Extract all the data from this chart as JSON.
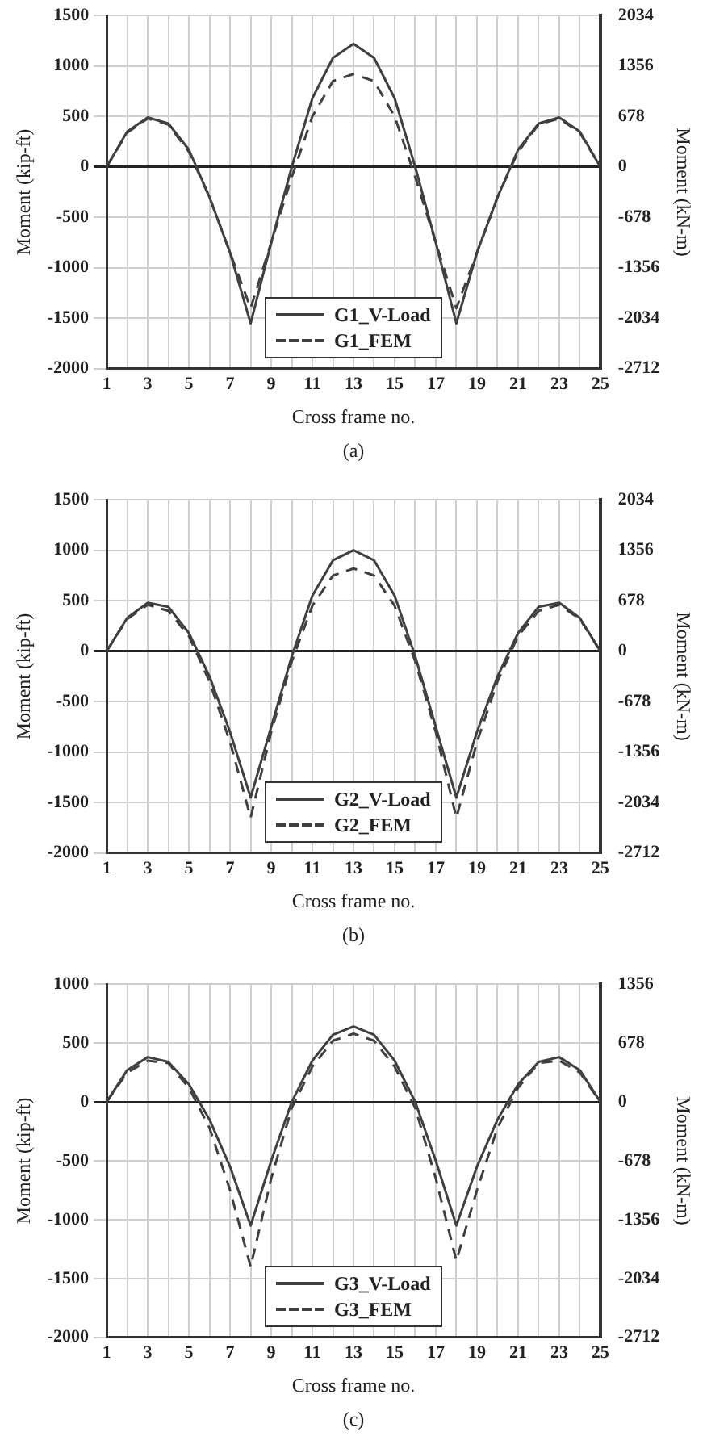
{
  "chart_data": [
    {
      "type": "line",
      "xlabel": "Cross frame no.",
      "ylabel": "Moment (kip-ft)",
      "y2label": "Moment (kN-m)",
      "annotations": [
        "(a)"
      ],
      "x": [
        1,
        2,
        3,
        4,
        5,
        6,
        7,
        8,
        9,
        10,
        11,
        12,
        13,
        14,
        15,
        16,
        17,
        18,
        19,
        20,
        21,
        22,
        23,
        24,
        25
      ],
      "xlim": [
        1,
        25
      ],
      "xticks": [
        1,
        {
          "value": 2,
          "label": null
        },
        3,
        {
          "value": 4,
          "label": null
        },
        5,
        {
          "value": 6,
          "label": null
        },
        7,
        {
          "value": 8,
          "label": null
        },
        9,
        {
          "value": 10,
          "label": null
        },
        11,
        {
          "value": 12,
          "label": null
        },
        13,
        {
          "value": 14,
          "label": null
        },
        15,
        {
          "value": 16,
          "label": null
        },
        17,
        {
          "value": 18,
          "label": null
        },
        19,
        {
          "value": 20,
          "label": null
        },
        21,
        {
          "value": 22,
          "label": null
        },
        23,
        {
          "value": 24,
          "label": null
        },
        25
      ],
      "ylim": [
        -2000,
        1500
      ],
      "yticks": [
        -2000,
        -1500,
        -1000,
        -500,
        0,
        500,
        1000,
        1500
      ],
      "y2lim": [
        -2712,
        2034
      ],
      "y2ticks": [
        -2712,
        -2034,
        -1356,
        -678,
        0,
        678,
        1356,
        2034
      ],
      "grid": true,
      "legend": "bottom",
      "series": [
        {
          "name": "G1_V-Load",
          "color": "#404040",
          "line_style": "solid",
          "values": [
            0,
            350,
            490,
            430,
            170,
            -300,
            -850,
            -1550,
            -750,
            0,
            680,
            1080,
            1220,
            1080,
            680,
            0,
            -750,
            -1550,
            -850,
            -300,
            170,
            430,
            490,
            350,
            0
          ]
        },
        {
          "name": "G1_FEM",
          "color": "#404040",
          "line_style": "dashed",
          "values": [
            0,
            340,
            480,
            420,
            150,
            -300,
            -850,
            -1400,
            -750,
            -100,
            500,
            850,
            920,
            850,
            500,
            -100,
            -750,
            -1400,
            -850,
            -300,
            150,
            420,
            480,
            340,
            0
          ]
        }
      ]
    },
    {
      "type": "line",
      "xlabel": "Cross frame no.",
      "ylabel": "Moment (kip-ft)",
      "y2label": "Moment (kN-m)",
      "annotations": [
        "(b)"
      ],
      "x": [
        1,
        2,
        3,
        4,
        5,
        6,
        7,
        8,
        9,
        10,
        11,
        12,
        13,
        14,
        15,
        16,
        17,
        18,
        19,
        20,
        21,
        22,
        23,
        24,
        25
      ],
      "xlim": [
        1,
        25
      ],
      "xticks": [
        1,
        {
          "value": 2,
          "label": null
        },
        3,
        {
          "value": 4,
          "label": null
        },
        5,
        {
          "value": 6,
          "label": null
        },
        7,
        {
          "value": 8,
          "label": null
        },
        9,
        {
          "value": 10,
          "label": null
        },
        11,
        {
          "value": 12,
          "label": null
        },
        13,
        {
          "value": 14,
          "label": null
        },
        15,
        {
          "value": 16,
          "label": null
        },
        17,
        {
          "value": 18,
          "label": null
        },
        19,
        {
          "value": 20,
          "label": null
        },
        21,
        {
          "value": 22,
          "label": null
        },
        23,
        {
          "value": 24,
          "label": null
        },
        25
      ],
      "ylim": [
        -2000,
        1500
      ],
      "yticks": [
        -2000,
        -1500,
        -1000,
        -500,
        0,
        500,
        1000,
        1500
      ],
      "y2lim": [
        -2712,
        2034
      ],
      "y2ticks": [
        -2712,
        -2034,
        -1356,
        -678,
        0,
        678,
        1356,
        2034
      ],
      "grid": true,
      "legend": "bottom",
      "series": [
        {
          "name": "G2_V-Load",
          "color": "#404040",
          "line_style": "solid",
          "values": [
            0,
            330,
            480,
            440,
            180,
            -250,
            -800,
            -1450,
            -750,
            -50,
            550,
            900,
            1000,
            900,
            550,
            -50,
            -750,
            -1450,
            -800,
            -250,
            180,
            440,
            480,
            330,
            0
          ]
        },
        {
          "name": "G2_FEM",
          "color": "#404040",
          "line_style": "dashed",
          "values": [
            0,
            320,
            460,
            400,
            150,
            -300,
            -900,
            -1650,
            -800,
            -100,
            450,
            750,
            820,
            750,
            450,
            -100,
            -800,
            -1650,
            -900,
            -300,
            150,
            400,
            460,
            320,
            0
          ]
        }
      ]
    },
    {
      "type": "line",
      "xlabel": "Cross frame no.",
      "ylabel": "Moment (kip-ft)",
      "y2label": "Moment (kN-m)",
      "annotations": [
        "(c)"
      ],
      "x": [
        1,
        2,
        3,
        4,
        5,
        6,
        7,
        8,
        9,
        10,
        11,
        12,
        13,
        14,
        15,
        16,
        17,
        18,
        19,
        20,
        21,
        22,
        23,
        24,
        25
      ],
      "xlim": [
        1,
        25
      ],
      "xticks": [
        1,
        {
          "value": 2,
          "label": null
        },
        3,
        {
          "value": 4,
          "label": null
        },
        5,
        {
          "value": 6,
          "label": null
        },
        7,
        {
          "value": 8,
          "label": null
        },
        9,
        {
          "value": 10,
          "label": null
        },
        11,
        {
          "value": 12,
          "label": null
        },
        13,
        {
          "value": 14,
          "label": null
        },
        15,
        {
          "value": 16,
          "label": null
        },
        17,
        {
          "value": 18,
          "label": null
        },
        19,
        {
          "value": 20,
          "label": null
        },
        21,
        {
          "value": 22,
          "label": null
        },
        23,
        {
          "value": 24,
          "label": null
        },
        25
      ],
      "ylim": [
        -2000,
        1000
      ],
      "yticks": [
        -2000,
        -1500,
        -1000,
        -500,
        0,
        500,
        1000
      ],
      "y2lim": [
        -2712,
        1356
      ],
      "y2ticks": [
        -2712,
        -2034,
        -1356,
        -678,
        0,
        678,
        1356
      ],
      "grid": true,
      "legend": "bottom",
      "series": [
        {
          "name": "G3_V-Load",
          "color": "#404040",
          "line_style": "solid",
          "values": [
            0,
            270,
            380,
            340,
            150,
            -150,
            -550,
            -1050,
            -500,
            0,
            350,
            570,
            640,
            570,
            350,
            0,
            -500,
            -1050,
            -550,
            -150,
            150,
            340,
            380,
            270,
            0
          ]
        },
        {
          "name": "G3_FEM",
          "color": "#404040",
          "line_style": "dashed",
          "values": [
            0,
            250,
            350,
            330,
            120,
            -220,
            -750,
            -1400,
            -650,
            -50,
            300,
            520,
            580,
            520,
            300,
            -50,
            -650,
            -1350,
            -750,
            -220,
            120,
            330,
            350,
            250,
            0
          ]
        }
      ]
    }
  ]
}
